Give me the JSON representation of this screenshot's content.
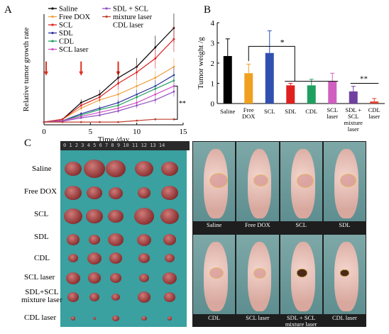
{
  "panels": {
    "a": "A",
    "b": "B",
    "c": "C"
  },
  "chart_data": [
    {
      "type": "line",
      "ylabel": "Relative tumor growth rate",
      "xlabel": "Time /day",
      "xlim": [
        0,
        15
      ],
      "ylim": [
        0,
        40
      ],
      "xticks": [
        "0",
        "5",
        "10",
        "15"
      ],
      "x": [
        0,
        2,
        4,
        6,
        8,
        10,
        12,
        14
      ],
      "injection_days": [
        0,
        4,
        8
      ],
      "annotation": "**",
      "series": [
        {
          "name": "Saline",
          "color": "#000000",
          "values": [
            1,
            2,
            8,
            11,
            17,
            21,
            28,
            35
          ]
        },
        {
          "name": "Free DOX",
          "color": "#f0a040",
          "values": [
            1,
            2,
            6,
            9,
            11,
            14,
            17,
            21
          ]
        },
        {
          "name": "SCL",
          "color": "#e02020",
          "values": [
            1,
            2,
            7,
            10,
            15,
            19,
            24,
            31
          ]
        },
        {
          "name": "SDL",
          "color": "#3030a0",
          "values": [
            1,
            1.5,
            4,
            6,
            8,
            11,
            14,
            18
          ]
        },
        {
          "name": "CDL",
          "color": "#20a060",
          "values": [
            1,
            1.5,
            3.5,
            5.5,
            7,
            10,
            13,
            16
          ]
        },
        {
          "name": "SCL laser",
          "color": "#d050c0",
          "values": [
            1,
            1.5,
            3,
            4.5,
            6,
            8,
            11,
            14
          ]
        },
        {
          "name": "SDL + SCL mixture laser",
          "color": "#9050c0",
          "values": [
            1,
            1.3,
            2.5,
            3.5,
            5,
            7,
            9,
            12
          ]
        },
        {
          "name": "CDL laser",
          "color": "#c04030",
          "values": [
            1,
            1,
            1,
            1,
            1,
            1.5,
            2,
            2
          ]
        }
      ]
    },
    {
      "type": "bar",
      "ylabel": "Tumor weight /g",
      "ylim": [
        0,
        4
      ],
      "yticks": [
        "0",
        "1",
        "2",
        "3",
        "4"
      ],
      "categories": [
        "Saline",
        "Free DOX",
        "SCL",
        "SDL",
        "CDL",
        "SCL laser",
        "SDL + SCL mixture laser",
        "CDL laser"
      ],
      "values": [
        2.35,
        1.5,
        2.5,
        0.9,
        0.9,
        1.1,
        0.6,
        0.1
      ],
      "errors": [
        0.85,
        0.45,
        1.1,
        0.1,
        0.3,
        0.4,
        0.25,
        0.15
      ],
      "colors": [
        "#000000",
        "#f0a020",
        "#3050b0",
        "#e02020",
        "#20a060",
        "#d060c0",
        "#7040a0",
        "#e04030"
      ],
      "sig1": "*",
      "sig2": "**"
    }
  ],
  "tumor_rows": [
    "Saline",
    "Free DOX",
    "SCL",
    "SDL",
    "CDL",
    "SCL laser",
    "SDL+SCL mixture laser",
    "CDL laser"
  ],
  "ruler_text": "0 1 2 3 4 5 6 7 8 9 10 11 12 13 14",
  "mouse_labels": [
    "Saline",
    "Free DOX",
    "SCL",
    "SDL",
    "CDL",
    "SCL laser",
    "SDL + SCL mixture laser",
    "CDL laser"
  ]
}
